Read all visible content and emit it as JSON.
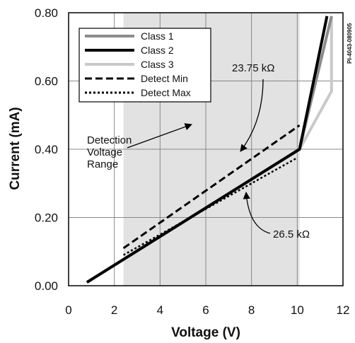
{
  "chart_data": {
    "type": "line",
    "xlabel": "Voltage (V)",
    "ylabel": "Current (mA)",
    "xlim": [
      0,
      12
    ],
    "ylim": [
      0,
      0.8
    ],
    "x_ticks": [
      "0",
      "2",
      "4",
      "6",
      "8",
      "10",
      "12"
    ],
    "y_ticks": [
      "0.00",
      "0.20",
      "0.40",
      "0.60",
      "0.80"
    ],
    "grid": true,
    "legend_position": "top-left",
    "shaded_region": {
      "x": [
        2.4,
        10.1
      ],
      "color": "#e2e2e2"
    },
    "series": [
      {
        "name": "Class 1",
        "color": "#8c8c8c",
        "style": "solid",
        "x": [
          0.8,
          10.1,
          11.5
        ],
        "y": [
          0.01,
          0.4,
          0.79
        ]
      },
      {
        "name": "Class 2",
        "color": "#000000",
        "style": "solid",
        "x": [
          0.8,
          10.1,
          11.3
        ],
        "y": [
          0.01,
          0.4,
          0.79
        ]
      },
      {
        "name": "Class 3",
        "color": "#c9c9c9",
        "style": "solid",
        "x": [
          0.8,
          10.1,
          11.5,
          11.5
        ],
        "y": [
          0.01,
          0.4,
          0.57,
          0.79
        ]
      },
      {
        "name": "Detect Min",
        "color": "#000000",
        "style": "dashed",
        "x": [
          2.4,
          10.1
        ],
        "y": [
          0.11,
          0.47
        ]
      },
      {
        "name": "Detect Max",
        "color": "#000000",
        "style": "dotted",
        "x": [
          2.4,
          10.0
        ],
        "y": [
          0.09,
          0.375
        ]
      }
    ],
    "annotations": [
      {
        "text": "23.75 kΩ"
      },
      {
        "text": "26.5 kΩ"
      },
      {
        "lines": [
          "Detection",
          "Voltage",
          "Range"
        ]
      }
    ]
  },
  "watermark": "PI-4043-080905"
}
